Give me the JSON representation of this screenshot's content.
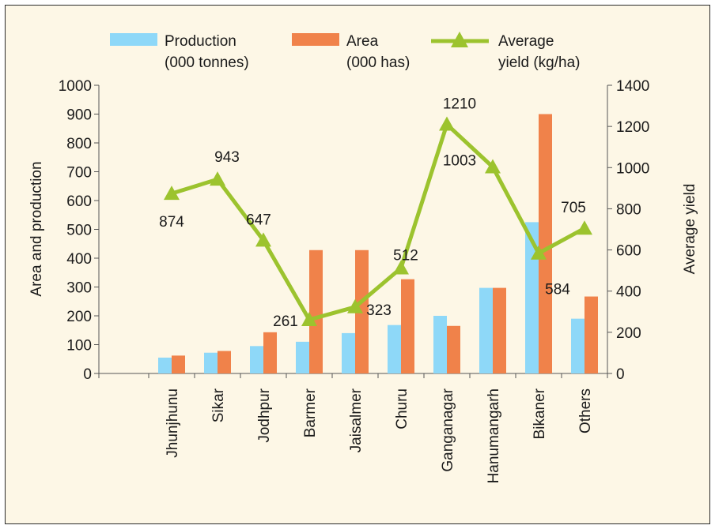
{
  "chart_data": {
    "type": "bar",
    "categories": [
      "Jhunjhunu",
      "Sikar",
      "Jodhpur",
      "Barmer",
      "Jaisalmer",
      "Churu",
      "Ganganagar",
      "Hanumangarh",
      "Bikaner",
      "Others"
    ],
    "series": [
      {
        "name": "Production (000 tonnes)",
        "type": "bar",
        "axis": "left",
        "color": "#8ed8f8",
        "values": [
          55,
          72,
          95,
          110,
          140,
          168,
          200,
          297,
          525,
          190
        ]
      },
      {
        "name": "Area (000 has)",
        "type": "bar",
        "axis": "left",
        "color": "#f0824a",
        "values": [
          62,
          78,
          143,
          428,
          428,
          327,
          165,
          297,
          900,
          267
        ]
      },
      {
        "name": "Average yield (kg/ha)",
        "type": "line",
        "axis": "right",
        "color": "#9cc32e",
        "values": [
          874,
          943,
          647,
          261,
          323,
          512,
          1210,
          1003,
          584,
          705
        ]
      }
    ],
    "legend": [
      {
        "line1": "Production",
        "line2": "(000 tonnes)"
      },
      {
        "line1": "Area",
        "line2": "(000 has)"
      },
      {
        "line1": "Average",
        "line2": "yield (kg/ha)"
      }
    ],
    "ylabel": "Area and production",
    "y2label": "Average yield",
    "ylim": [
      0,
      1000
    ],
    "y2lim": [
      0,
      1400
    ],
    "yticks": [
      0,
      100,
      200,
      300,
      400,
      500,
      600,
      700,
      800,
      900,
      1000
    ],
    "y2ticks": [
      0,
      200,
      400,
      600,
      800,
      1000,
      1200,
      1400
    ],
    "data_labels": [
      "874",
      "943",
      "647",
      "261",
      "323",
      "512",
      "1210",
      "1003",
      "584",
      "705"
    ],
    "legend_position": "top",
    "grid": false
  }
}
